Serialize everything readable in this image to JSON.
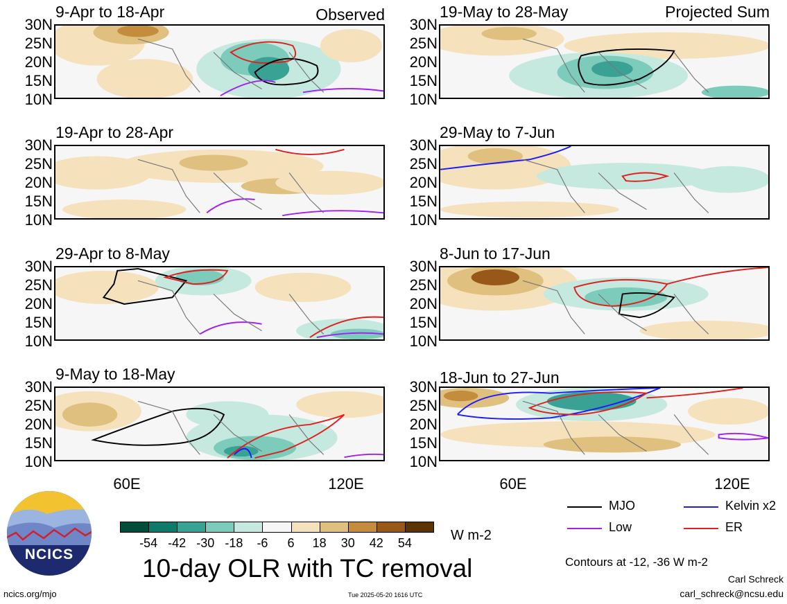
{
  "panels": [
    {
      "title": "9-Apr to 18-Apr",
      "tag": "Observed"
    },
    {
      "title": "19-Apr to 28-Apr",
      "tag": ""
    },
    {
      "title": "29-Apr to 8-May",
      "tag": ""
    },
    {
      "title": "9-May to 18-May",
      "tag": ""
    },
    {
      "title": "19-May to 28-May",
      "tag": "Projected Sum"
    },
    {
      "title": "29-May to 7-Jun",
      "tag": ""
    },
    {
      "title": "8-Jun to 17-Jun",
      "tag": ""
    },
    {
      "title": "18-Jun to 27-Jun",
      "tag": ""
    }
  ],
  "lat_labels": [
    "30N",
    "25N",
    "20N",
    "15N",
    "10N"
  ],
  "lon_labels": [
    "60E",
    "120E"
  ],
  "legend": {
    "mjo": "MJO",
    "kelvin": "Kelvin x2",
    "low": "Low",
    "er": "ER",
    "colors": {
      "mjo": "#000000",
      "kelvin": "#1a1aff",
      "low": "#a020f0",
      "er": "#e0201e"
    }
  },
  "colorbar": {
    "labels": [
      "-54",
      "-42",
      "-30",
      "-18",
      "-6",
      "6",
      "18",
      "30",
      "42",
      "54"
    ],
    "colors": [
      "#004d3a",
      "#0e7a6a",
      "#3aa294",
      "#7ccbbb",
      "#c5e9df",
      "#f6f6f6",
      "#f5e2bd",
      "#dfc07f",
      "#c48d3e",
      "#98581a",
      "#5c3305"
    ],
    "unit": "W m-2"
  },
  "main_title": "10-day OLR with TC removal",
  "contours_note": "Contours at -12, -36 W m-2",
  "author": "Carl Schreck",
  "email": "carl_schreck@ncsu.edu",
  "site": "ncics.org/mjo",
  "timestamp": "Tue 2025-05-20 1616 UTC",
  "logo_text": "NCICS"
}
